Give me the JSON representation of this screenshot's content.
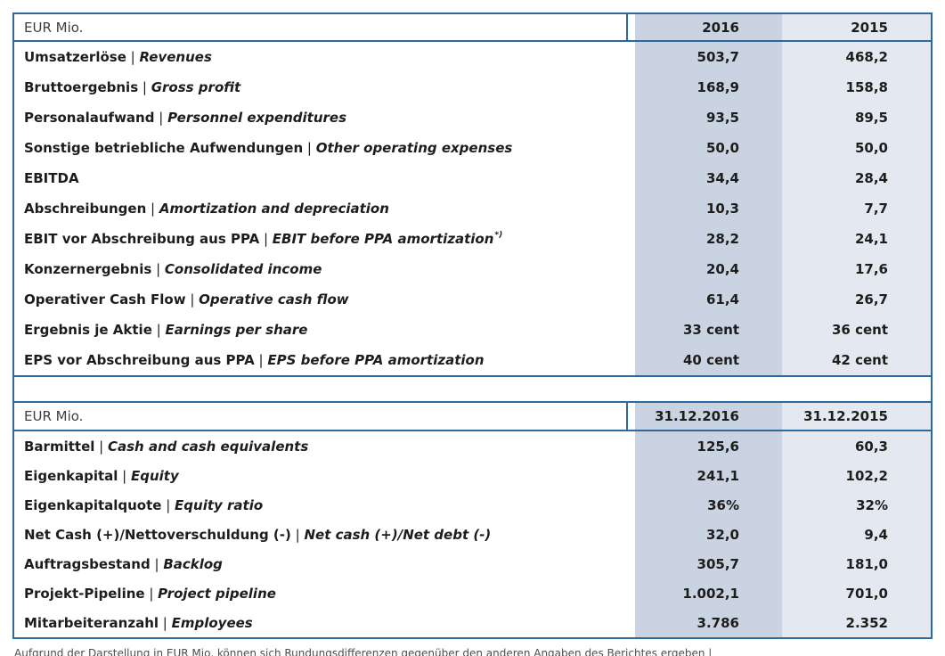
{
  "colors": {
    "border_blue": "#2d699c",
    "column_2016_fill": "#c9d3e1",
    "column_2015_fill": "#e3e8f1",
    "label_text": "#1d1d1b",
    "header_text": "#3f3f3f",
    "footnote_text": "#4d4d4d"
  },
  "income_table": {
    "unit_label": "EUR Mio.",
    "col_headers": [
      "2016",
      "2015"
    ],
    "rows": [
      {
        "de": "Umsatzerlöse",
        "en": "Revenues",
        "v2016": "503,7",
        "v2015": "468,2"
      },
      {
        "de": "Bruttoergebnis",
        "en": "Gross profit",
        "v2016": "168,9",
        "v2015": "158,8"
      },
      {
        "de": "Personalaufwand",
        "en": "Personnel expenditures",
        "v2016": "93,5",
        "v2015": "89,5"
      },
      {
        "de": "Sonstige betriebliche Aufwendungen",
        "en": "Other operating expenses",
        "v2016": "50,0",
        "v2015": "50,0"
      },
      {
        "de": "EBITDA",
        "en": "",
        "v2016": "34,4",
        "v2015": "28,4"
      },
      {
        "de": "Abschreibungen",
        "en": "Amortization and depreciation",
        "v2016": "10,3",
        "v2015": "7,7"
      },
      {
        "de": "EBIT vor Abschreibung aus PPA",
        "en": "EBIT before PPA amortization",
        "sup": "*)",
        "v2016": "28,2",
        "v2015": "24,1"
      },
      {
        "de": "Konzernergebnis",
        "en": "Consolidated income",
        "v2016": "20,4",
        "v2015": "17,6"
      },
      {
        "de": "Operativer Cash Flow",
        "en": "Operative cash flow",
        "v2016": "61,4",
        "v2015": "26,7"
      },
      {
        "de": "Ergebnis je Aktie",
        "en": "Earnings per share",
        "v2016": "33 cent",
        "v2015": "36 cent"
      },
      {
        "de": "EPS vor Abschreibung aus PPA",
        "en": "EPS before PPA amortization",
        "v2016": "40 cent",
        "v2015": "42 cent"
      }
    ]
  },
  "balance_table": {
    "unit_label": "EUR Mio.",
    "col_headers": [
      "31.12.2016",
      "31.12.2015"
    ],
    "rows": [
      {
        "de": "Barmittel",
        "en": "Cash and cash equivalents",
        "v2016": "125,6",
        "v2015": "60,3"
      },
      {
        "de": "Eigenkapital",
        "en": "Equity",
        "v2016": "241,1",
        "v2015": "102,2"
      },
      {
        "de": "Eigenkapitalquote",
        "en": "Equity ratio",
        "v2016": "36%",
        "v2015": "32%"
      },
      {
        "de": "Net Cash (+)/Nettoverschuldung (-)",
        "en": "Net cash (+)/Net debt (-)",
        "v2016": "32,0",
        "v2015": "9,4"
      },
      {
        "de": "Auftragsbestand",
        "en": "Backlog",
        "v2016": "305,7",
        "v2015": "181,0"
      },
      {
        "de": "Projekt-Pipeline",
        "en": "Project pipeline",
        "v2016": "1.002,1",
        "v2015": "701,0"
      },
      {
        "de": "Mitarbeiteranzahl",
        "en": "Employees",
        "v2016": "3.786",
        "v2015": "2.352"
      }
    ]
  },
  "footnote": "Aufgrund der Darstellung in EUR Mio. können sich Rundungsdifferenzen gegenüber den anderen Angaben des Berichtes ergeben | "
}
